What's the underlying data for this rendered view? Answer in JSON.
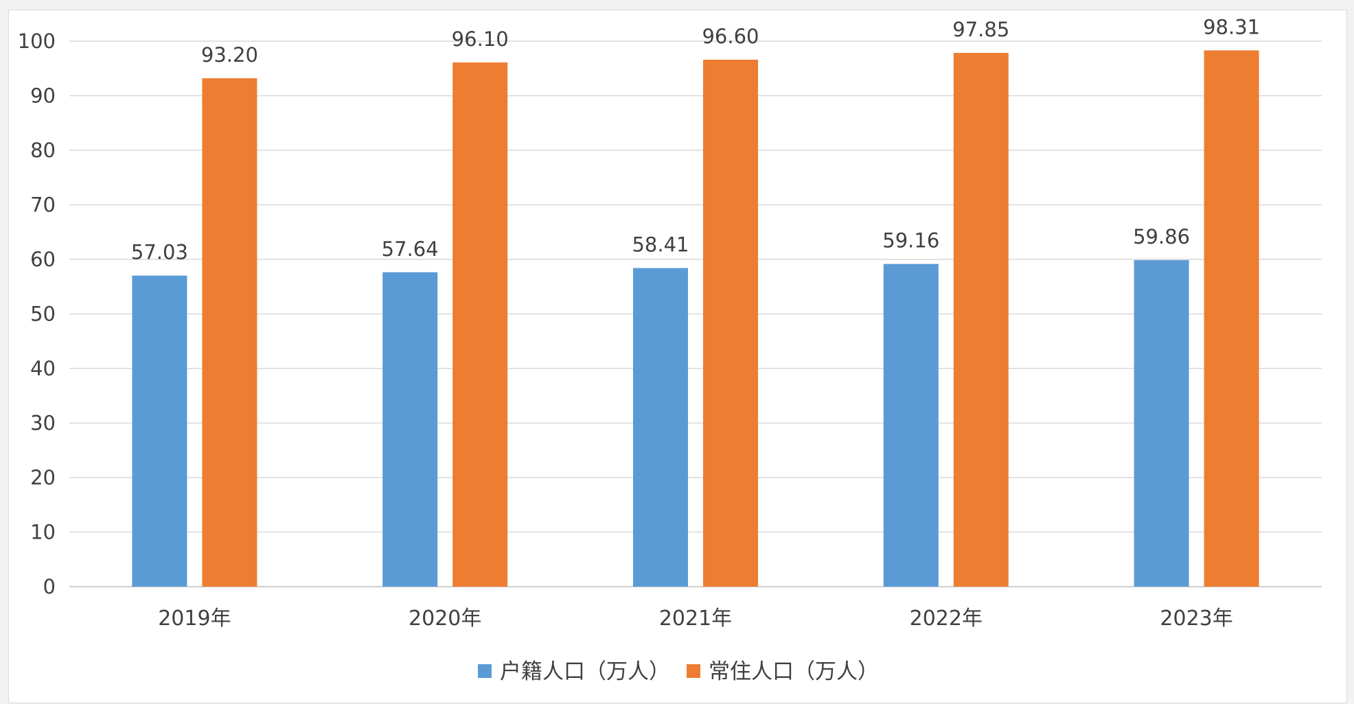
{
  "chart_data": {
    "type": "bar",
    "categories": [
      "2019年",
      "2020年",
      "2021年",
      "2022年",
      "2023年"
    ],
    "series": [
      {
        "name": "户籍人口（万人）",
        "color": "#5b9bd5",
        "values": [
          57.03,
          57.64,
          58.41,
          59.16,
          59.86
        ],
        "labels": [
          "57.03",
          "57.64",
          "58.41",
          "59.16",
          "59.86"
        ]
      },
      {
        "name": "常住人口（万人）",
        "color": "#ed7d31",
        "values": [
          93.2,
          96.1,
          96.6,
          97.85,
          98.31
        ],
        "labels": [
          "93.20",
          "96.10",
          "96.60",
          "97.85",
          "98.31"
        ]
      }
    ],
    "yticks": [
      "0",
      "10",
      "20",
      "30",
      "40",
      "50",
      "60",
      "70",
      "80",
      "90",
      "100"
    ],
    "ylim": [
      0,
      100
    ],
    "grid": true,
    "legend_position": "bottom",
    "title": "",
    "xlabel": "",
    "ylabel": ""
  }
}
